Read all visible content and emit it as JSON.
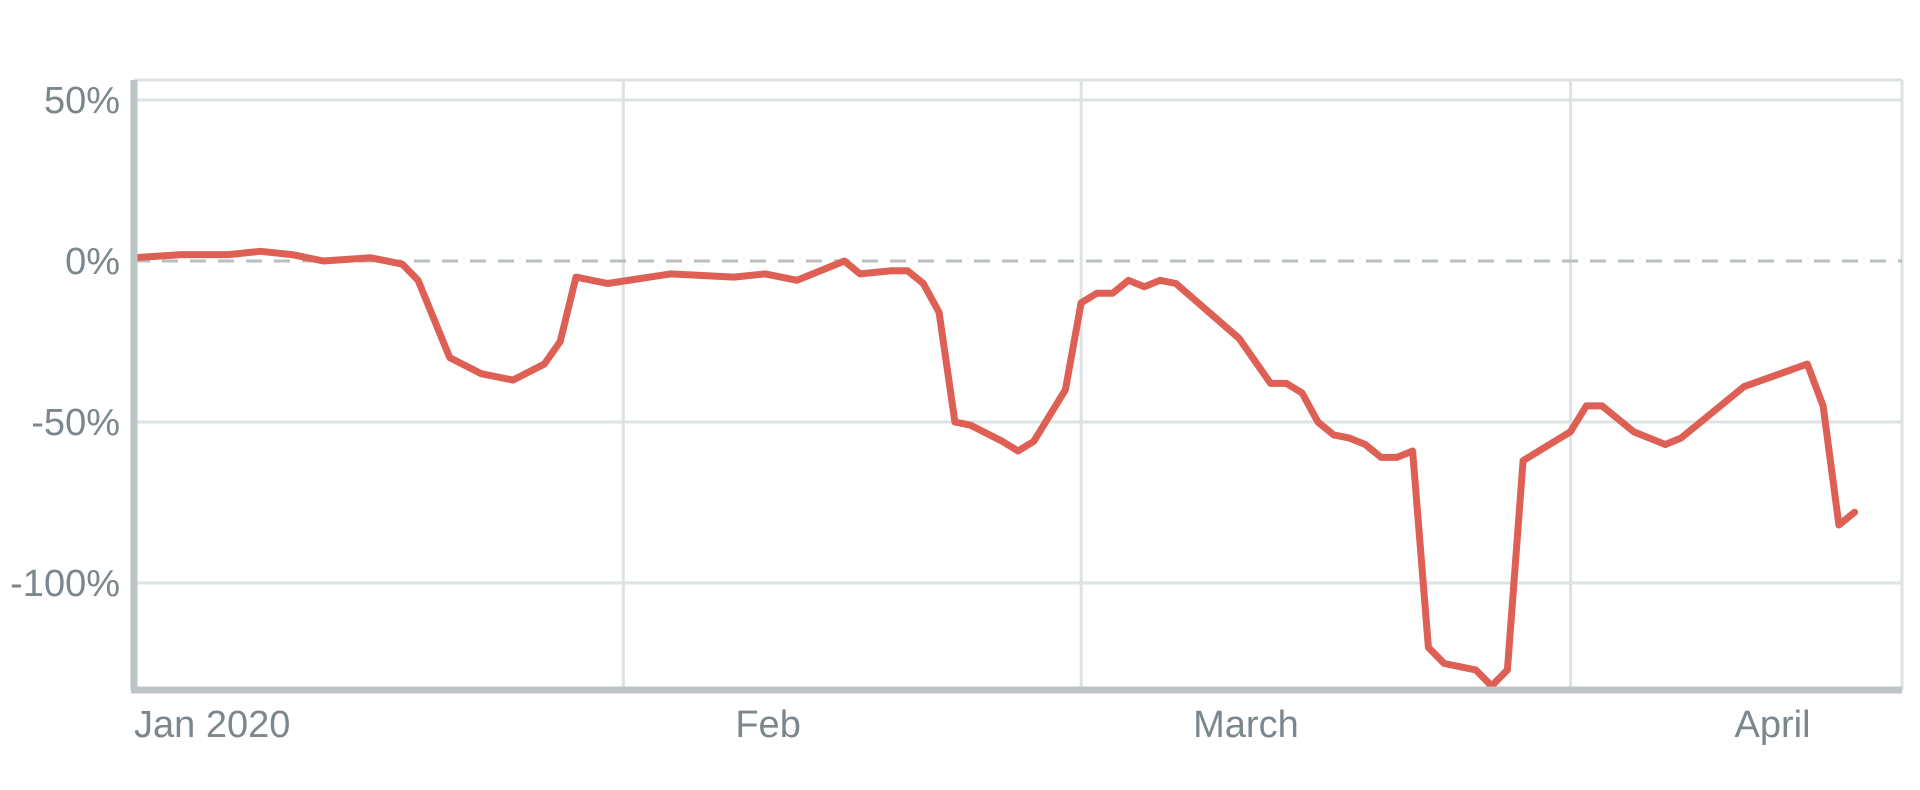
{
  "chart_data": {
    "type": "line",
    "title": "",
    "xlabel": "",
    "ylabel": "",
    "x_tick_labels": [
      "Jan 2020",
      "Feb",
      "March",
      "April"
    ],
    "y_tick_labels": [
      "50%",
      "0%",
      "-50%",
      "-100%"
    ],
    "y_ticks": [
      50,
      0,
      -50,
      -100
    ],
    "ylim": [
      -120,
      50
    ],
    "reference_line": {
      "y": 0,
      "style": "dashed"
    },
    "grid": true,
    "colors": {
      "series": "#de5f54",
      "grid": "#dde3e4",
      "axis": "#bcc4c6",
      "reference": "#b8bfc1",
      "labels": "#7b878c"
    },
    "series": [
      {
        "name": "",
        "points": [
          [
            "2020-01-01",
            1
          ],
          [
            "2020-01-04",
            2
          ],
          [
            "2020-01-07",
            2
          ],
          [
            "2020-01-09",
            3
          ],
          [
            "2020-01-11",
            2
          ],
          [
            "2020-01-13",
            0
          ],
          [
            "2020-01-16",
            1
          ],
          [
            "2020-01-18",
            -1
          ],
          [
            "2020-01-19",
            -6
          ],
          [
            "2020-01-21",
            -30
          ],
          [
            "2020-01-23",
            -35
          ],
          [
            "2020-01-25",
            -37
          ],
          [
            "2020-01-27",
            -32
          ],
          [
            "2020-01-28",
            -25
          ],
          [
            "2020-01-29",
            -5
          ],
          [
            "2020-01-31",
            -7
          ],
          [
            "2020-02-04",
            -4
          ],
          [
            "2020-02-08",
            -5
          ],
          [
            "2020-02-10",
            -4
          ],
          [
            "2020-02-12",
            -6
          ],
          [
            "2020-02-15",
            0
          ],
          [
            "2020-02-16",
            -4
          ],
          [
            "2020-02-18",
            -3
          ],
          [
            "2020-02-19",
            -3
          ],
          [
            "2020-02-20",
            -7
          ],
          [
            "2020-02-21",
            -16
          ],
          [
            "2020-02-22",
            -50
          ],
          [
            "2020-02-23",
            -51
          ],
          [
            "2020-02-25",
            -56
          ],
          [
            "2020-02-26",
            -59
          ],
          [
            "2020-02-27",
            -56
          ],
          [
            "2020-02-29",
            -40
          ],
          [
            "2020-03-01",
            -13
          ],
          [
            "2020-03-02",
            -10
          ],
          [
            "2020-03-03",
            -10
          ],
          [
            "2020-03-04",
            -6
          ],
          [
            "2020-03-05",
            -8
          ],
          [
            "2020-03-06",
            -6
          ],
          [
            "2020-03-07",
            -7
          ],
          [
            "2020-03-11",
            -24
          ],
          [
            "2020-03-13",
            -38
          ],
          [
            "2020-03-14",
            -38
          ],
          [
            "2020-03-15",
            -41
          ],
          [
            "2020-03-16",
            -50
          ],
          [
            "2020-03-17",
            -54
          ],
          [
            "2020-03-18",
            -55
          ],
          [
            "2020-03-19",
            -57
          ],
          [
            "2020-03-20",
            -61
          ],
          [
            "2020-03-21",
            -61
          ],
          [
            "2020-03-22",
            -59
          ],
          [
            "2020-03-23",
            -120
          ],
          [
            "2020-03-24",
            -125
          ],
          [
            "2020-03-26",
            -127
          ],
          [
            "2020-03-27",
            -132
          ],
          [
            "2020-03-28",
            -127
          ],
          [
            "2020-03-29",
            -62
          ],
          [
            "2020-03-30",
            -59
          ],
          [
            "2020-03-31",
            -56
          ],
          [
            "2020-04-01",
            -53
          ],
          [
            "2020-04-02",
            -45
          ],
          [
            "2020-04-03",
            -45
          ],
          [
            "2020-04-05",
            -53
          ],
          [
            "2020-04-07",
            -57
          ],
          [
            "2020-04-08",
            -55
          ],
          [
            "2020-04-12",
            -39
          ],
          [
            "2020-04-16",
            -32
          ],
          [
            "2020-04-17",
            -45
          ],
          [
            "2020-04-18",
            -82
          ],
          [
            "2020-04-19",
            -78
          ]
        ]
      }
    ]
  }
}
